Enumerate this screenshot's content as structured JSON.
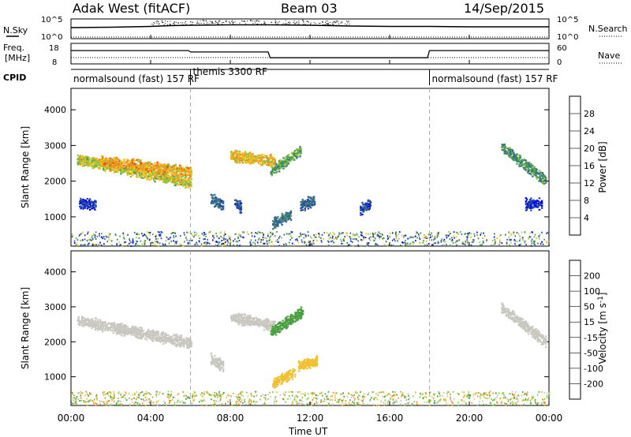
{
  "header": {
    "station": "Adak West (fitACF)",
    "beam": "Beam 03",
    "date": "14/Sep/2015"
  },
  "panels": {
    "nsky": {
      "label": "N.Sky",
      "left_ticks": [
        "10^5",
        "10^0"
      ],
      "right_ticks": [
        "10^5",
        "10^0"
      ],
      "right_label": "N.Search"
    },
    "freq": {
      "label_line1": "Freq.",
      "label_line2": "[MHz]",
      "left_ticks": [
        "18",
        "8"
      ],
      "right_ticks": [
        "60",
        "0"
      ],
      "right_label": "Nave"
    },
    "cpid": {
      "label": "CPID",
      "segments": [
        {
          "text": "normalsound (fast) 157 RF",
          "start_hour": 0
        },
        {
          "text": "themis 3300 RF",
          "start_hour": 6
        },
        {
          "text": "normalsound (fast) 157 RF",
          "start_hour": 18
        }
      ]
    },
    "power": {
      "ylabel": "Slant Range [km]",
      "colorbar_label": "Power [dB]",
      "colorbar_ticks": [
        "28",
        "24",
        "20",
        "16",
        "12",
        "8",
        "4"
      ]
    },
    "velocity": {
      "ylabel": "Slant Range [km]",
      "colorbar_label": "Velocity [m s",
      "colorbar_label_sup": "-1",
      "colorbar_label_end": "]",
      "colorbar_ticks": [
        "200",
        "100",
        "50",
        "15",
        "-15",
        "-50",
        "-100",
        "-200"
      ]
    }
  },
  "x_axis": {
    "label": "Time UT",
    "ticks": [
      "00:00",
      "04:00",
      "08:00",
      "12:00",
      "16:00",
      "20:00",
      "00:00"
    ]
  },
  "colors": {
    "power_scale": [
      "#0000ff",
      "#1e3fa0",
      "#2f5f9e",
      "#3a7f6e",
      "#4a9e5a",
      "#8fc43a",
      "#f0c020",
      "#f09020",
      "#f05010",
      "#ff0000"
    ],
    "velocity_scale": [
      "#0000ff",
      "#1e3fa0",
      "#2f7f6e",
      "#4aa040",
      "#80d040",
      "#c8c8c0",
      "#f0c030",
      "#f09020",
      "#f05010",
      "#ff0000"
    ],
    "ground_scatter": "#c8c8c0"
  },
  "chart_data": [
    {
      "type": "line",
      "title": "N.Sky",
      "x_unit": "hours UT",
      "xlim": [
        0,
        24
      ],
      "ylim_log10": [
        0,
        5
      ],
      "series": [
        {
          "name": "N.Sky",
          "x": [
            0,
            2,
            4,
            5,
            6,
            8,
            10,
            12,
            14,
            16,
            18,
            20,
            22,
            24
          ],
          "y_log10": [
            2.8,
            2.9,
            3.1,
            3.3,
            3.4,
            3.5,
            3.5,
            3.4,
            3.2,
            3.1,
            3.1,
            3.0,
            3.0,
            3.0
          ]
        }
      ]
    },
    {
      "type": "line",
      "title": "Freq.",
      "x_unit": "hours UT",
      "xlim": [
        0,
        24
      ],
      "ylim": [
        8,
        18
      ],
      "series": [
        {
          "name": "Freq.",
          "x": [
            0,
            5.9,
            6.0,
            9.9,
            10.0,
            17.9,
            18.0,
            24
          ],
          "y": [
            14.5,
            14.5,
            13.8,
            13.8,
            11.0,
            11.0,
            14.5,
            14.5
          ]
        }
      ]
    },
    {
      "type": "heatmap",
      "title": "Power [dB]",
      "ylabel": "Slant Range [km]",
      "xlabel": "Time UT",
      "xlim": [
        0,
        24
      ],
      "ylim": [
        180,
        4600
      ],
      "yticks": [
        1000,
        2000,
        3000,
        4000
      ],
      "clim": [
        0,
        30
      ],
      "regions": [
        {
          "t0": 0.3,
          "t1": 6.0,
          "r_start": 2650,
          "r_end": 2000,
          "value": 18
        },
        {
          "t0": 1.5,
          "t1": 6.0,
          "r_start": 2600,
          "r_end": 2300,
          "value": 21
        },
        {
          "t0": 0.4,
          "t1": 1.2,
          "r_start": 1420,
          "r_end": 1380,
          "value": 4
        },
        {
          "t0": 7.0,
          "t1": 7.6,
          "r_start": 1550,
          "r_end": 1350,
          "value": 8
        },
        {
          "t0": 8.2,
          "t1": 8.5,
          "r_start": 1450,
          "r_end": 1300,
          "value": 6
        },
        {
          "t0": 8.0,
          "t1": 10.2,
          "r_start": 2750,
          "r_end": 2600,
          "value": 20
        },
        {
          "t0": 10.0,
          "t1": 11.5,
          "r_start": 2300,
          "r_end": 2900,
          "value": 14
        },
        {
          "t0": 10.1,
          "t1": 11.0,
          "r_start": 850,
          "r_end": 1100,
          "value": 10
        },
        {
          "t0": 11.5,
          "t1": 12.2,
          "r_start": 1350,
          "r_end": 1500,
          "value": 8
        },
        {
          "t0": 14.5,
          "t1": 15.0,
          "r_start": 1250,
          "r_end": 1400,
          "value": 6
        },
        {
          "t0": 21.6,
          "t1": 23.8,
          "r_start": 3000,
          "r_end": 2050,
          "value": 12
        },
        {
          "t0": 22.8,
          "t1": 23.6,
          "r_start": 1400,
          "r_end": 1400,
          "value": 4
        }
      ],
      "near_range_noise": {
        "r0": 200,
        "r1": 600,
        "value": 10
      }
    },
    {
      "type": "heatmap",
      "title": "Velocity [m s-1]",
      "ylabel": "Slant Range [km]",
      "xlabel": "Time UT",
      "xlim": [
        0,
        24
      ],
      "ylim": [
        180,
        4600
      ],
      "yticks": [
        1000,
        2000,
        3000,
        4000
      ],
      "clim": [
        -200,
        200
      ],
      "regions": [
        {
          "t0": 0.3,
          "t1": 6.0,
          "r_start": 2650,
          "r_end": 2000,
          "value": 0,
          "ground_scatter": true
        },
        {
          "t0": 7.0,
          "t1": 7.6,
          "r_start": 1550,
          "r_end": 1350,
          "value": 0,
          "ground_scatter": true
        },
        {
          "t0": 8.0,
          "t1": 10.2,
          "r_start": 2750,
          "r_end": 2500,
          "value": 0,
          "ground_scatter": true
        },
        {
          "t0": 10.0,
          "t1": 11.6,
          "r_start": 2300,
          "r_end": 2900,
          "value": 40
        },
        {
          "t0": 10.1,
          "t1": 11.2,
          "r_start": 850,
          "r_end": 1150,
          "value": -80
        },
        {
          "t0": 11.4,
          "t1": 12.3,
          "r_start": 1350,
          "r_end": 1500,
          "value": -60
        },
        {
          "t0": 21.6,
          "t1": 23.8,
          "r_start": 3000,
          "r_end": 2050,
          "value": 0,
          "ground_scatter": true
        }
      ],
      "near_range_noise": {
        "r0": 200,
        "r1": 600,
        "value": 20
      }
    }
  ]
}
